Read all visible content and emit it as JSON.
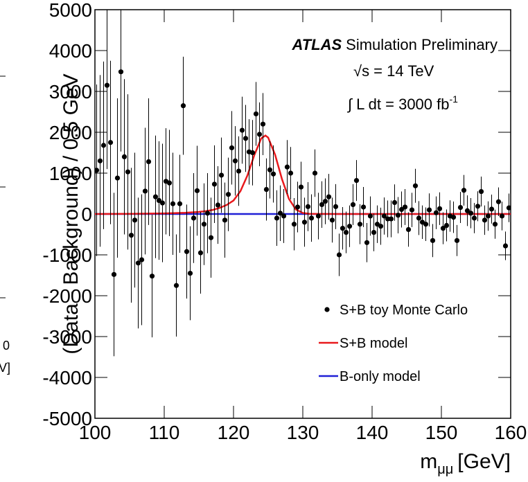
{
  "chart_data": {
    "type": "scatter",
    "y_label": "(Data - Background) / 0.5 GeV",
    "x_label": "m",
    "x_label_sub": "μμ",
    "x_label_unit": "[GeV]",
    "annotations": {
      "experiment": "ATLAS",
      "status": "Simulation Preliminary",
      "energy": "√s = 14 TeV",
      "lumi": "∫ L dt = 3000 fb",
      "lumi_sup": "-1"
    },
    "edge_texts": [
      "0",
      "V]"
    ],
    "xlim": [
      100,
      160
    ],
    "xticks": [
      100,
      110,
      120,
      130,
      140,
      150,
      160
    ],
    "ylim": [
      -5000,
      5000
    ],
    "yticks": [
      -5000,
      -4000,
      -3000,
      -2000,
      -1000,
      0,
      1000,
      2000,
      3000,
      4000,
      5000
    ],
    "legend": "lower right",
    "series": [
      {
        "name": "S+B toy Monte Carlo",
        "color": "#000000",
        "style": "points",
        "x": [
          100.25,
          100.75,
          101.25,
          101.75,
          102.25,
          102.75,
          103.25,
          103.75,
          104.25,
          104.75,
          105.25,
          105.75,
          106.25,
          106.75,
          107.25,
          107.75,
          108.25,
          108.75,
          109.25,
          109.75,
          110.25,
          110.75,
          111.25,
          111.75,
          112.25,
          112.75,
          113.25,
          113.75,
          114.25,
          114.75,
          115.25,
          115.75,
          116.25,
          116.75,
          117.25,
          117.75,
          118.25,
          118.75,
          119.25,
          119.75,
          120.25,
          120.75,
          121.25,
          121.75,
          122.25,
          122.75,
          123.25,
          123.75,
          124.25,
          124.75,
          125.25,
          125.75,
          126.25,
          126.75,
          127.25,
          127.75,
          128.25,
          128.75,
          129.25,
          129.75,
          130.25,
          130.75,
          131.25,
          131.75,
          132.25,
          132.75,
          133.25,
          133.75,
          134.25,
          134.75,
          135.25,
          135.75,
          136.25,
          136.75,
          137.25,
          137.75,
          138.25,
          138.75,
          139.25,
          139.75,
          140.25,
          140.75,
          141.25,
          141.75,
          142.25,
          142.75,
          143.25,
          143.75,
          144.25,
          144.75,
          145.25,
          145.75,
          146.25,
          146.75,
          147.25,
          147.75,
          148.25,
          148.75,
          149.25,
          149.75,
          150.25,
          150.75,
          151.25,
          151.75,
          152.25,
          152.75,
          153.25,
          153.75,
          154.25,
          154.75,
          155.25,
          155.75,
          156.25,
          156.75,
          157.25,
          157.75,
          158.25,
          158.75,
          159.25,
          159.75
        ],
        "values": [
          1070,
          1300,
          1680,
          3150,
          1750,
          -1480,
          880,
          3480,
          1400,
          1030,
          -520,
          -150,
          -1200,
          -1120,
          560,
          1280,
          -1520,
          420,
          330,
          270,
          800,
          760,
          250,
          -1750,
          250,
          2650,
          -920,
          -1450,
          -100,
          570,
          -950,
          -250,
          20,
          -580,
          730,
          220,
          950,
          -150,
          480,
          1620,
          1300,
          1050,
          2050,
          1850,
          1520,
          1500,
          2450,
          1950,
          2200,
          600,
          1080,
          980,
          -100,
          20,
          -50,
          1150,
          1000,
          -250,
          170,
          660,
          -200,
          180,
          -100,
          1000,
          -50,
          230,
          310,
          420,
          -150,
          180,
          -1000,
          -350,
          -450,
          -300,
          230,
          820,
          -250,
          170,
          -700,
          -50,
          -450,
          -250,
          -300,
          -50,
          -120,
          -120,
          280,
          -30,
          110,
          170,
          -380,
          100,
          690,
          -100,
          -200,
          -250,
          100,
          -650,
          30,
          130,
          -350,
          -280,
          -50,
          -80,
          -650,
          160,
          580,
          80,
          20,
          -100,
          190,
          550,
          -150,
          -50,
          120,
          -250,
          300,
          -50,
          -780,
          150
        ],
        "errors": [
          2100,
          2100,
          2050,
          2050,
          2000,
          2000,
          1950,
          1950,
          1900,
          1900,
          1650,
          1650,
          1600,
          1600,
          1550,
          1550,
          1500,
          1500,
          1450,
          1450,
          1300,
          1300,
          1250,
          1250,
          1200,
          1200,
          1150,
          1150,
          1100,
          1100,
          1000,
          1000,
          980,
          980,
          950,
          950,
          920,
          920,
          900,
          900,
          850,
          850,
          820,
          820,
          800,
          800,
          780,
          780,
          760,
          760,
          700,
          700,
          680,
          680,
          660,
          660,
          640,
          640,
          620,
          620,
          600,
          600,
          580,
          580,
          570,
          570,
          560,
          560,
          550,
          550,
          520,
          520,
          510,
          510,
          500,
          500,
          490,
          490,
          480,
          480,
          460,
          460,
          455,
          455,
          450,
          450,
          445,
          445,
          440,
          440,
          420,
          420,
          415,
          415,
          410,
          410,
          405,
          405,
          400,
          400,
          390,
          390,
          385,
          385,
          380,
          380,
          375,
          375,
          370,
          370,
          365,
          365,
          360,
          360,
          355,
          355,
          350,
          350,
          350,
          350
        ]
      },
      {
        "name": "S+B model",
        "color": "#e8191c",
        "style": "line",
        "x": [
          100,
          105,
          110,
          113,
          115,
          116,
          117,
          118,
          119,
          120,
          121,
          122,
          123,
          124,
          124.6,
          125,
          126,
          127,
          128,
          129,
          130,
          131,
          135,
          140,
          150,
          160
        ],
        "values": [
          0,
          5,
          15,
          30,
          50,
          70,
          100,
          150,
          220,
          330,
          560,
          940,
          1440,
          1850,
          1920,
          1870,
          1450,
          850,
          370,
          110,
          25,
          5,
          0,
          0,
          0,
          0
        ]
      },
      {
        "name": "B-only model",
        "color": "#1f1fd6",
        "style": "line",
        "x": [
          100,
          160
        ],
        "values": [
          0,
          0
        ]
      }
    ]
  }
}
